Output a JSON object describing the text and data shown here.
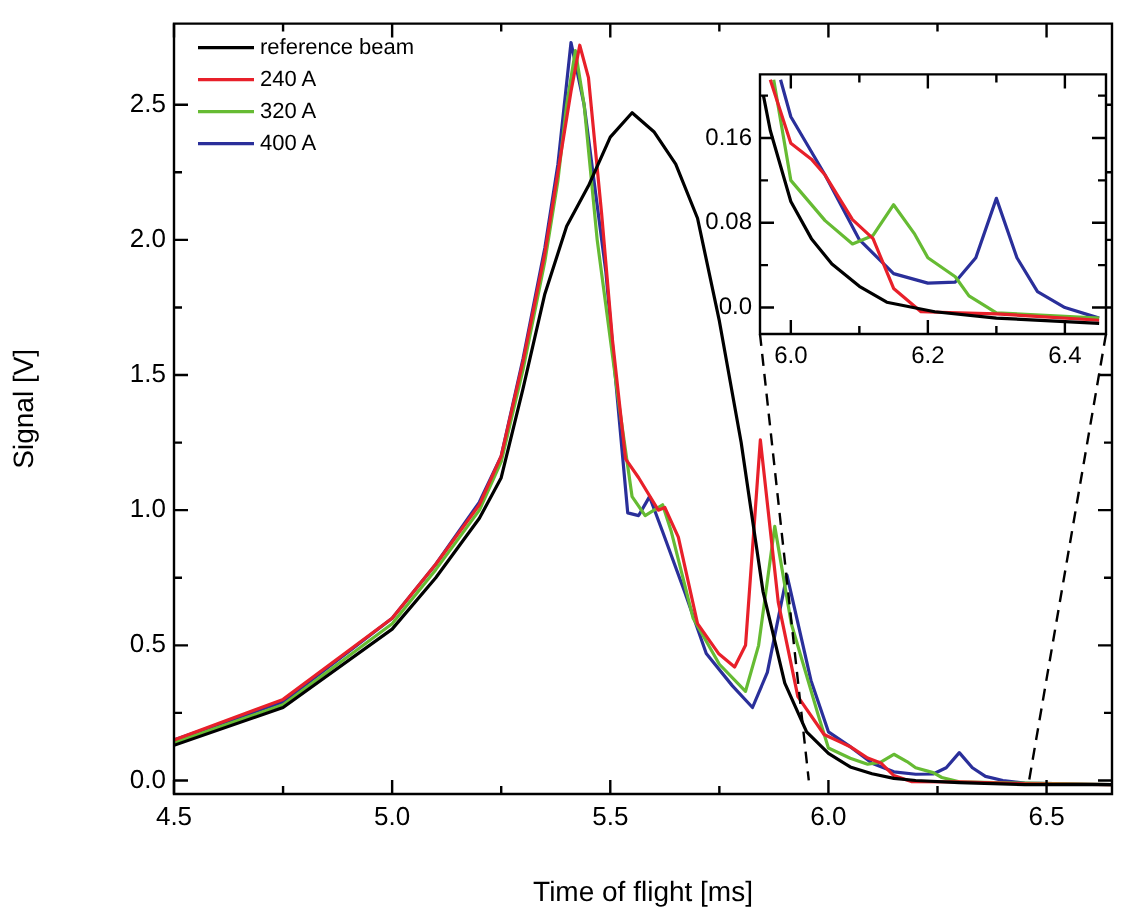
{
  "chart_data": [
    {
      "type": "line",
      "xlabel": "Time of flight [ms]",
      "ylabel": "Signal [V]",
      "legend": "top left",
      "marker": "none",
      "xlim": [
        4.5,
        6.65
      ],
      "ylim": [
        -0.05,
        2.8
      ],
      "xticks": [
        4.5,
        {
          "value": 4.75,
          "label": null
        },
        {
          "value": 5,
          "label": "5.0"
        },
        {
          "value": 5.25,
          "label": null
        },
        5.5,
        {
          "value": 5.75,
          "label": null
        },
        {
          "value": 6,
          "label": "6.0"
        },
        {
          "value": 6.25,
          "label": null
        },
        6.5
      ],
      "yticks": [
        {
          "value": 0,
          "label": "0.0"
        },
        {
          "value": 0.25,
          "label": null
        },
        0.5,
        {
          "value": 0.75,
          "label": null
        },
        {
          "value": 1,
          "label": "1.0"
        },
        {
          "value": 1.25,
          "label": null
        },
        1.5,
        {
          "value": 1.75,
          "label": null
        },
        {
          "value": 2,
          "label": "2.0"
        },
        {
          "value": 2.25,
          "label": null
        },
        2.5
      ],
      "series": [
        {
          "name": "reference beam",
          "color": "#000000",
          "x": [
            4.5,
            4.75,
            5.0,
            5.1,
            5.2,
            5.25,
            5.3,
            5.35,
            5.4,
            5.45,
            5.5,
            5.55,
            5.6,
            5.65,
            5.7,
            5.75,
            5.8,
            5.85,
            5.9,
            5.95,
            6.0,
            6.05,
            6.1,
            6.15,
            6.2,
            6.3,
            6.45,
            6.65
          ],
          "values": [
            0.13,
            0.27,
            0.56,
            0.75,
            0.97,
            1.12,
            1.45,
            1.8,
            2.05,
            2.2,
            2.38,
            2.47,
            2.4,
            2.28,
            2.08,
            1.7,
            1.25,
            0.7,
            0.36,
            0.18,
            0.1,
            0.05,
            0.025,
            0.008,
            0,
            -0.008,
            -0.015,
            -0.015
          ]
        },
        {
          "name": "240 A",
          "color": "#e8202a",
          "x": [
            4.5,
            4.75,
            5.0,
            5.1,
            5.2,
            5.25,
            5.3,
            5.35,
            5.38,
            5.41,
            5.43,
            5.45,
            5.48,
            5.505,
            5.535,
            5.565,
            5.61,
            5.625,
            5.656,
            5.7,
            5.748,
            5.785,
            5.81,
            5.844,
            5.885,
            5.93,
            5.99,
            6.03,
            6.05,
            6.09,
            6.12,
            6.15,
            6.19,
            6.3,
            6.45,
            6.65
          ],
          "values": [
            0.15,
            0.3,
            0.6,
            0.8,
            1.02,
            1.2,
            1.55,
            1.95,
            2.25,
            2.55,
            2.72,
            2.6,
            2.1,
            1.63,
            1.19,
            1.12,
            1.0,
            1.01,
            0.9,
            0.58,
            0.47,
            0.42,
            0.5,
            1.26,
            0.66,
            0.31,
            0.17,
            0.14,
            0.125,
            0.083,
            0.065,
            0.018,
            -0.004,
            -0.005,
            -0.012,
            -0.015
          ]
        },
        {
          "name": "320 A",
          "color": "#66bb33",
          "x": [
            4.5,
            4.75,
            5.0,
            5.1,
            5.2,
            5.25,
            5.3,
            5.35,
            5.38,
            5.4,
            5.42,
            5.44,
            5.47,
            5.52,
            5.55,
            5.58,
            5.62,
            5.64,
            5.69,
            5.75,
            5.81,
            5.84,
            5.877,
            5.915,
            5.977,
            6.0,
            6.05,
            6.09,
            6.12,
            6.15,
            6.18,
            6.2,
            6.24,
            6.26,
            6.3,
            6.45,
            6.65
          ],
          "values": [
            0.14,
            0.28,
            0.58,
            0.78,
            1.0,
            1.18,
            1.52,
            1.92,
            2.22,
            2.5,
            2.7,
            2.5,
            2.0,
            1.39,
            1.05,
            0.98,
            1.02,
            0.92,
            0.6,
            0.43,
            0.33,
            0.5,
            0.94,
            0.58,
            0.24,
            0.12,
            0.082,
            0.06,
            0.068,
            0.097,
            0.07,
            0.047,
            0.029,
            0.011,
            -0.005,
            -0.01,
            -0.015
          ]
        },
        {
          "name": "400 A",
          "color": "#2a2f9a",
          "x": [
            4.5,
            4.75,
            5.0,
            5.1,
            5.2,
            5.25,
            5.3,
            5.35,
            5.38,
            5.41,
            5.44,
            5.49,
            5.54,
            5.565,
            5.59,
            5.62,
            5.67,
            5.72,
            5.78,
            5.826,
            5.86,
            5.905,
            5.96,
            6.0,
            6.05,
            6.1,
            6.15,
            6.2,
            6.24,
            6.27,
            6.3,
            6.33,
            6.36,
            6.4,
            6.45,
            6.65
          ],
          "values": [
            0.15,
            0.29,
            0.6,
            0.8,
            1.03,
            1.2,
            1.56,
            1.97,
            2.28,
            2.73,
            2.5,
            1.88,
            0.99,
            0.98,
            1.05,
            0.92,
            0.7,
            0.47,
            0.35,
            0.27,
            0.4,
            0.76,
            0.37,
            0.18,
            0.125,
            0.064,
            0.032,
            0.023,
            0.024,
            0.047,
            0.103,
            0.047,
            0.015,
            0,
            -0.01,
            -0.015
          ]
        }
      ]
    },
    {
      "type": "line",
      "marker": "none",
      "xlim": [
        5.955,
        6.46
      ],
      "ylim": [
        -0.025,
        0.22
      ],
      "xticks": [
        {
          "value": 6,
          "label": "6.0"
        },
        {
          "value": 6.1,
          "label": null
        },
        6.2,
        {
          "value": 6.3,
          "label": null
        },
        6.4
      ],
      "yticks": [
        {
          "value": 0,
          "label": "0.0"
        },
        {
          "value": 0.04,
          "label": null
        },
        0.08,
        {
          "value": 0.12,
          "label": null
        },
        0.16,
        {
          "value": 0.2,
          "label": null
        }
      ],
      "series": [
        {
          "color": "#000000",
          "x": [
            5.96,
            5.97,
            6.0,
            6.03,
            6.06,
            6.1,
            6.14,
            6.21,
            6.3,
            6.45
          ],
          "values": [
            0.2,
            0.167,
            0.1,
            0.065,
            0.041,
            0.02,
            0.005,
            -0.004,
            -0.01,
            -0.015
          ]
        },
        {
          "color": "#e8202a",
          "x": [
            5.97,
            6.0,
            6.03,
            6.05,
            6.09,
            6.12,
            6.15,
            6.19,
            6.3,
            6.45
          ],
          "values": [
            0.215,
            0.155,
            0.14,
            0.125,
            0.083,
            0.065,
            0.018,
            -0.004,
            -0.006,
            -0.012
          ]
        },
        {
          "color": "#66bb33",
          "x": [
            5.975,
            6.0,
            6.05,
            6.09,
            6.12,
            6.15,
            6.18,
            6.2,
            6.24,
            6.26,
            6.3,
            6.45
          ],
          "values": [
            0.215,
            0.12,
            0.082,
            0.06,
            0.068,
            0.097,
            0.07,
            0.047,
            0.029,
            0.011,
            -0.005,
            -0.01
          ]
        },
        {
          "color": "#2a2f9a",
          "x": [
            5.985,
            6.0,
            6.05,
            6.1,
            6.15,
            6.2,
            6.24,
            6.27,
            6.3,
            6.33,
            6.36,
            6.4,
            6.45
          ],
          "values": [
            0.215,
            0.18,
            0.125,
            0.064,
            0.032,
            0.023,
            0.024,
            0.047,
            0.103,
            0.047,
            0.015,
            0,
            -0.01
          ]
        }
      ]
    }
  ]
}
